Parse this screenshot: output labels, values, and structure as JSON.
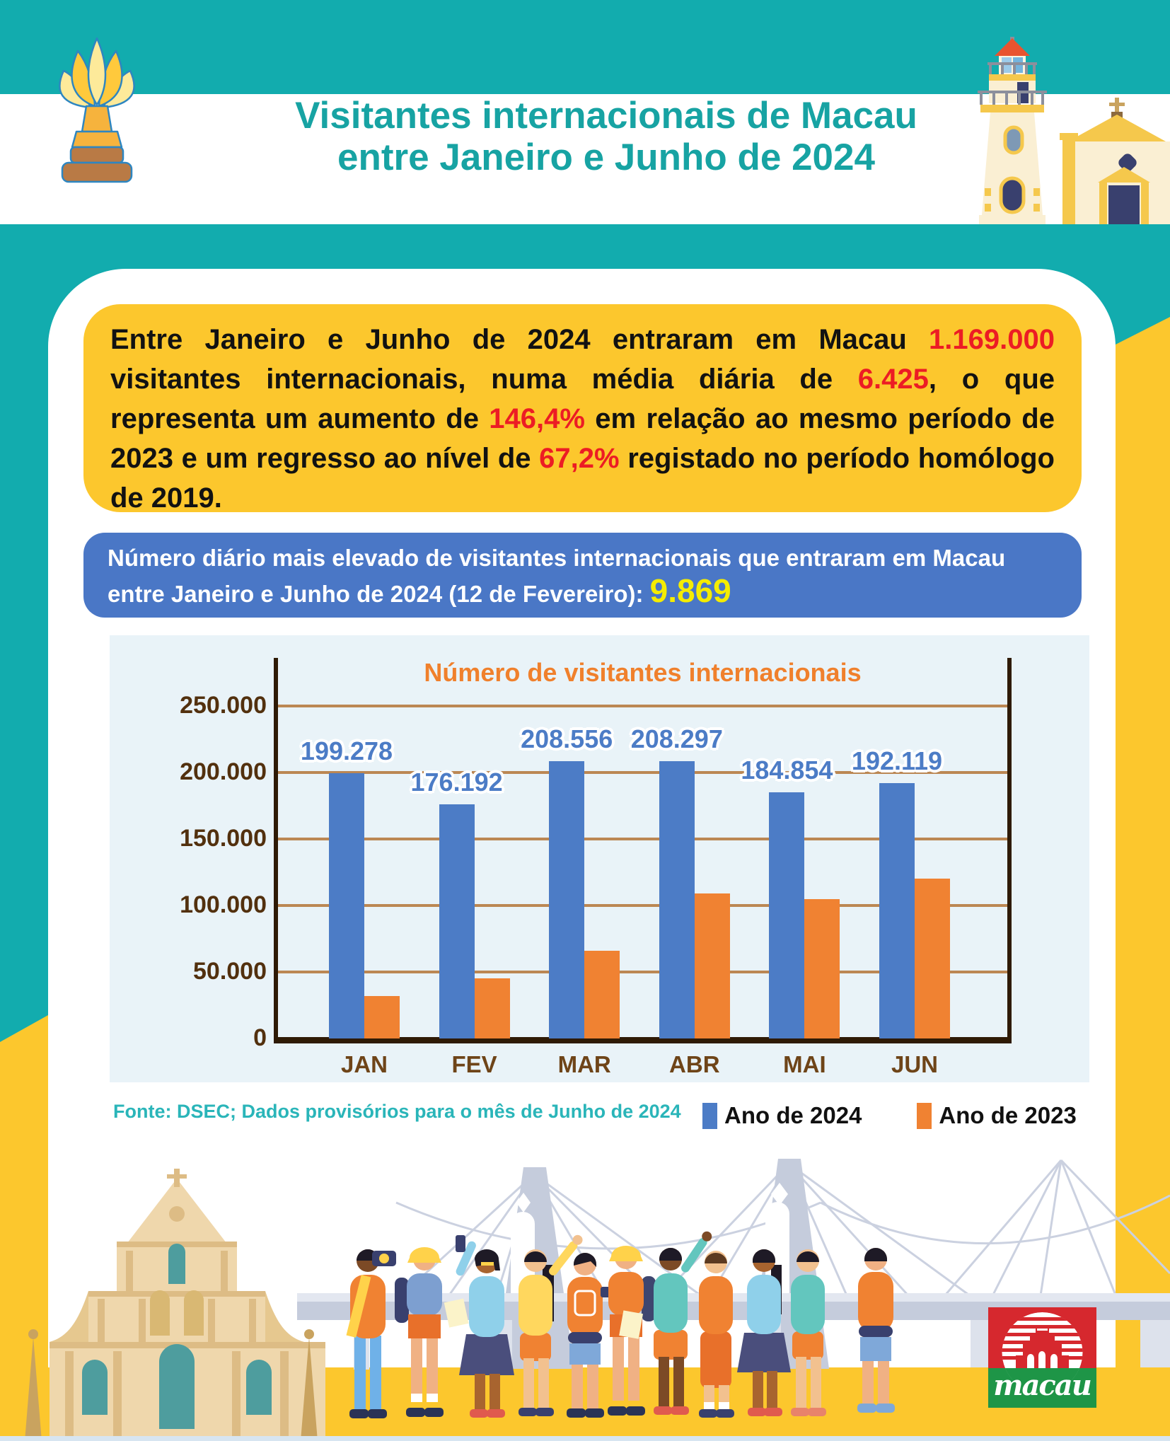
{
  "header": {
    "title_line1": "Visitantes internacionais de Macau",
    "title_line2": "entre Janeiro e Junho de 2024",
    "title_color": "#17A3A3",
    "icons": [
      "lotus-trophy-icon",
      "guia-lighthouse-icon",
      "church-icon"
    ]
  },
  "summary_box": {
    "bg_color": "#FCC72D",
    "highlight_color": "#EC1C24",
    "segments": [
      {
        "text": "Entre Janeiro e Junho de 2024 entraram em Macau ",
        "em": false
      },
      {
        "text": "1.169.000",
        "em": true
      },
      {
        "text": " visitantes internacionais, numa média diária de ",
        "em": false
      },
      {
        "text": "6.425",
        "em": true
      },
      {
        "text": ", o que representa um aumento de ",
        "em": false
      },
      {
        "text": "146,4%",
        "em": true
      },
      {
        "text": " em relação ao mesmo período de 2023 e um regresso ao nível de ",
        "em": false
      },
      {
        "text": "67,2%",
        "em": true
      },
      {
        "text": " registado no período homólogo de 2019.",
        "em": false
      }
    ]
  },
  "record_box": {
    "bg_color": "#4A77C6",
    "highlight_color": "#F5EC00",
    "segments": [
      {
        "text": "Número diário mais elevado de visitantes internacionais que entraram em Macau entre Janeiro e Junho de 2024 (12 de Fevereiro): ",
        "em": false
      },
      {
        "text": "9.869",
        "em": true
      }
    ]
  },
  "chart_data": {
    "type": "bar",
    "title": "Número de visitantes internacionais",
    "title_color": "#F0802C",
    "background": "#E9F3F8",
    "grid": true,
    "categories": [
      "JAN",
      "FEV",
      "MAR",
      "ABR",
      "MAI",
      "JUN"
    ],
    "series": [
      {
        "name": "Ano de 2024",
        "color": "#4C7CC6",
        "values": [
          199278,
          176192,
          208556,
          208297,
          184854,
          192119
        ],
        "labels": [
          "199.278",
          "176.192",
          "208.556",
          "208.297",
          "184.854",
          "192.119"
        ]
      },
      {
        "name": "Ano de 2023",
        "color": "#F08232",
        "values": [
          32000,
          45000,
          66000,
          109000,
          105000,
          120000
        ],
        "labels": []
      }
    ],
    "ylabel": "",
    "xlabel": "",
    "ylim": [
      0,
      286000
    ],
    "yticks": [
      {
        "value": 0,
        "label": "0"
      },
      {
        "value": 50000,
        "label": "50.000"
      },
      {
        "value": 100000,
        "label": "100.000"
      },
      {
        "value": 150000,
        "label": "150.000"
      },
      {
        "value": 200000,
        "label": "200.000"
      },
      {
        "value": 250000,
        "label": "250.000"
      }
    ],
    "legend_position": "bottom"
  },
  "footer": {
    "source": "Fonte: DSEC; Dados provisórios para o mês de Junho de 2024",
    "source_color": "#2AB5B9",
    "legend": [
      {
        "label": "Ano de 2024",
        "color": "#4C7CC6"
      },
      {
        "label": "Ano de 2023",
        "color": "#F08232"
      }
    ],
    "logo_text": "macau"
  },
  "palette": {
    "teal": "#12ACAE",
    "yellow": "#FCC72D",
    "red": "#EC1C24",
    "blue": "#4A77C6",
    "bottom_strip": "#D7E5F1"
  }
}
